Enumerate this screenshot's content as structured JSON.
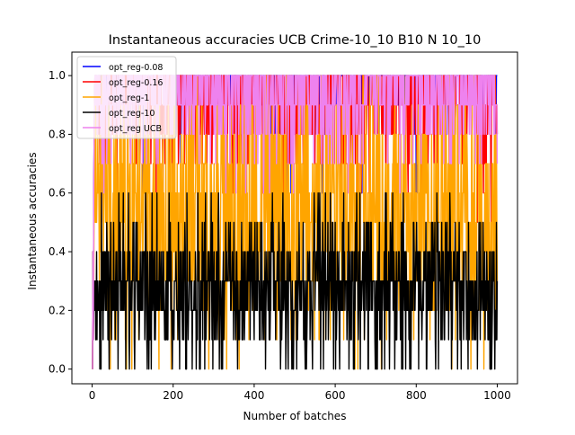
{
  "chart_data": {
    "type": "line",
    "title": "Instantaneous accuracies UCB Crime-10_10 B10 N 10_10",
    "xlabel": "Number of batches",
    "ylabel": "Instantaneous accuracies",
    "xlim": [
      -50,
      1050
    ],
    "ylim": [
      -0.05,
      1.08
    ],
    "xticks": [
      0,
      200,
      400,
      600,
      800,
      1000
    ],
    "xtick_labels": [
      "0",
      "200",
      "400",
      "600",
      "800",
      "1000"
    ],
    "yticks": [
      0.0,
      0.2,
      0.4,
      0.6,
      0.8,
      1.0
    ],
    "ytick_labels": [
      "0.0",
      "0.2",
      "0.4",
      "0.6",
      "0.8",
      "1.0"
    ],
    "grid": false,
    "legend_position": "top-left",
    "n_points": 1000,
    "series": [
      {
        "name": "opt_reg-0.08",
        "color": "#0000ff",
        "early": [
          0.0,
          0.4,
          0.1,
          0.6,
          0.8,
          0.9,
          1.0
        ],
        "range_after_warmup": [
          0.6,
          1.0
        ],
        "typical": 1.0
      },
      {
        "name": "opt_reg-0.16",
        "color": "#ff0000",
        "early": [
          0.0,
          0.4,
          0.1,
          0.5,
          0.8,
          0.9,
          1.0
        ],
        "range_after_warmup": [
          0.5,
          1.0
        ],
        "typical": 0.9
      },
      {
        "name": "opt_reg-1",
        "color": "#ffa500",
        "early": [
          0.0,
          0.4,
          0.1,
          0.3,
          0.6,
          0.8,
          0.9
        ],
        "range_after_warmup": [
          0.0,
          1.0
        ],
        "typical": 0.7
      },
      {
        "name": "opt_reg-10",
        "color": "#000000",
        "early": [
          0.0,
          0.4,
          0.1,
          0.2,
          0.3,
          0.2,
          0.3
        ],
        "range_after_warmup": [
          0.0,
          0.6
        ],
        "typical": 0.3
      },
      {
        "name": "opt_reg UCB",
        "color": "#ee82ee",
        "early": [
          0.0,
          0.4,
          0.1,
          0.6,
          0.8,
          0.9,
          1.0
        ],
        "range_after_warmup": [
          0.6,
          1.0
        ],
        "typical": 0.9
      }
    ]
  }
}
